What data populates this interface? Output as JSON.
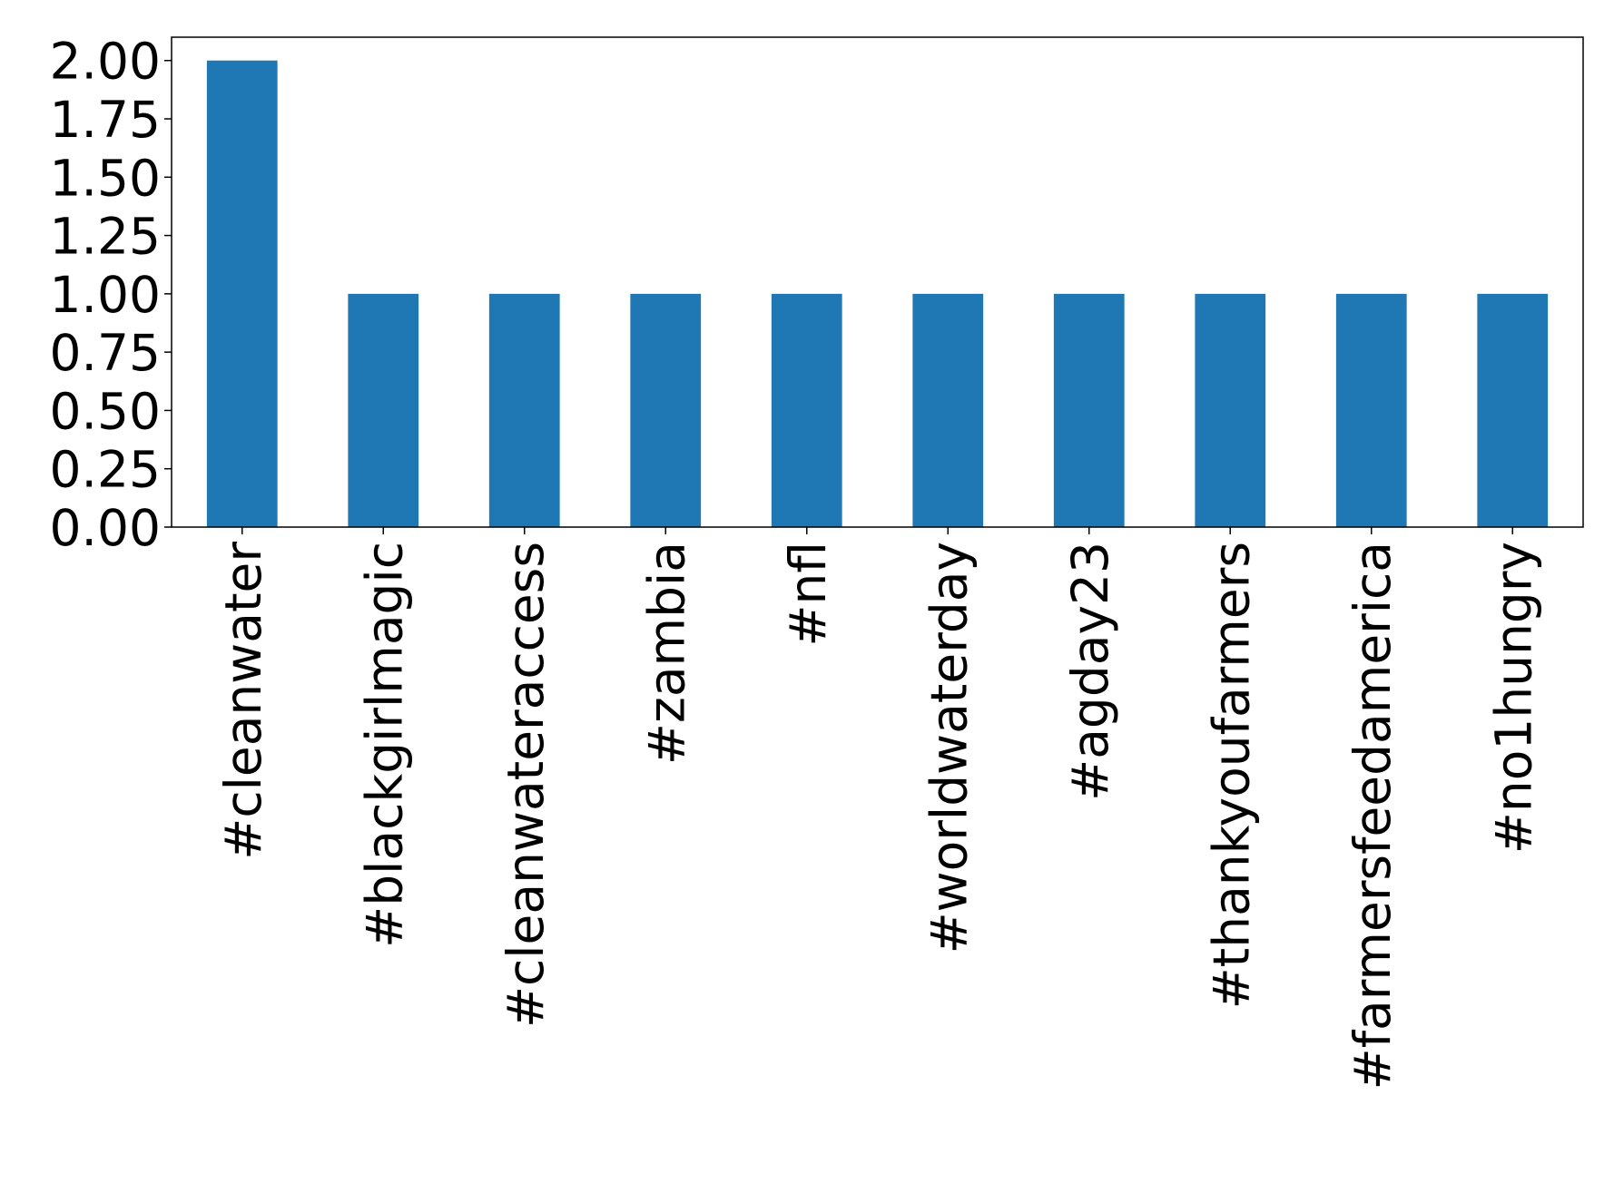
{
  "chart_data": {
    "type": "bar",
    "title": "",
    "xlabel": "",
    "ylabel": "",
    "categories": [
      "#cleanwater",
      "#blackgirlmagic",
      "#cleanwateraccess",
      "#zambia",
      "#nfl",
      "#worldwaterday",
      "#agday23",
      "#thankyoufarmers",
      "#farmersfeedamerica",
      "#no1hungry"
    ],
    "values": [
      2,
      1,
      1,
      1,
      1,
      1,
      1,
      1,
      1,
      1
    ],
    "ylim": [
      0,
      2.1
    ],
    "yticks": [
      "0.00",
      "0.25",
      "0.50",
      "0.75",
      "1.00",
      "1.25",
      "1.50",
      "1.75",
      "2.00"
    ],
    "bar_color": "#1f77b4",
    "grid": false,
    "legend": "none"
  }
}
